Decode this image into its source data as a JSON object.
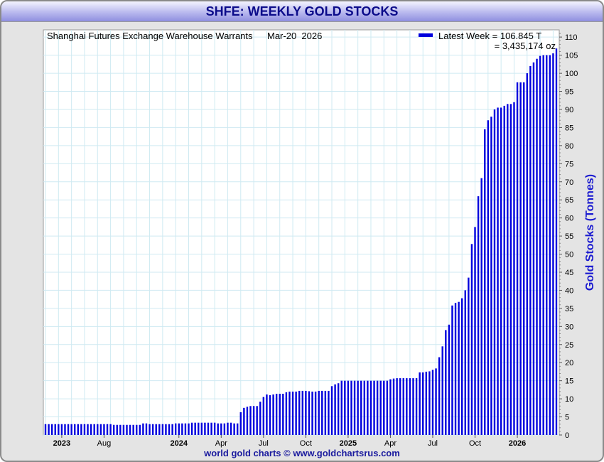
{
  "header": {
    "title": "SHFE: WEEKLY GOLD STOCKS"
  },
  "footer": {
    "credit": "world gold charts © www.goldchartsrus.com"
  },
  "colors": {
    "bar": "#0000dd",
    "title_text": "#0b0b8a",
    "ylabel": "#1a1ad0",
    "grid": "#cfeaf2"
  },
  "chart_data": {
    "type": "bar",
    "title": "Shanghai Futures Exchange Warehouse Warrants",
    "date_label": "Mar-20  2026",
    "legend": {
      "label": "Latest Week = 106.845 T",
      "sub_label": "= 3,435,174 oz",
      "position": "top-right"
    },
    "ylabel": "Gold Stocks (Tonnes)",
    "xlabel": "",
    "ylim": [
      0,
      112
    ],
    "y_ticks": [
      0,
      5,
      10,
      15,
      20,
      25,
      30,
      35,
      40,
      45,
      50,
      55,
      60,
      65,
      70,
      75,
      80,
      85,
      90,
      95,
      100,
      105,
      110
    ],
    "x_ticks": [
      {
        "label": "2023",
        "week": 5,
        "bold": true
      },
      {
        "label": "Aug",
        "week": 18,
        "bold": false
      },
      {
        "label": "2024",
        "week": 41,
        "bold": true
      },
      {
        "label": "Apr",
        "week": 54,
        "bold": false
      },
      {
        "label": "Jul",
        "week": 67,
        "bold": false
      },
      {
        "label": "Oct",
        "week": 80,
        "bold": false
      },
      {
        "label": "2025",
        "week": 93,
        "bold": true
      },
      {
        "label": "Apr",
        "week": 106,
        "bold": false
      },
      {
        "label": "Jul",
        "week": 119,
        "bold": false
      },
      {
        "label": "Oct",
        "week": 132,
        "bold": false
      },
      {
        "label": "2026",
        "week": 145,
        "bold": true
      }
    ],
    "grid": true,
    "series": [
      {
        "name": "Weekly Gold Stocks (Tonnes)",
        "values": [
          3,
          3,
          3,
          3,
          3,
          3,
          3,
          3,
          3,
          3,
          3,
          3,
          3,
          3,
          3,
          3,
          3,
          3,
          3,
          3,
          3,
          2.8,
          2.8,
          2.8,
          2.8,
          2.8,
          2.8,
          2.8,
          2.8,
          2.8,
          3.2,
          3.2,
          3,
          3,
          3,
          3,
          3,
          3,
          3,
          3,
          3.2,
          3.2,
          3.2,
          3.2,
          3.2,
          3.4,
          3.4,
          3.4,
          3.4,
          3.4,
          3.4,
          3.4,
          3.4,
          3.2,
          3.2,
          3.2,
          3.4,
          3.4,
          3.2,
          3.2,
          6.3,
          7.5,
          7.8,
          8,
          8,
          8,
          9.2,
          10.5,
          11.2,
          11,
          11.2,
          11.4,
          11.4,
          11.4,
          11.8,
          12,
          12,
          12,
          12.2,
          12.2,
          12.2,
          12.1,
          12,
          12,
          12.2,
          12.2,
          12.2,
          12.2,
          13.5,
          14,
          14.3,
          15,
          15,
          15,
          15,
          15,
          15,
          15,
          15,
          15,
          15,
          15,
          15,
          15,
          15,
          15,
          15.4,
          15.6,
          15.7,
          15.7,
          15.7,
          15.7,
          15.7,
          15.7,
          15.7,
          17.3,
          17.3,
          17.5,
          17.6,
          18,
          18.4,
          21.5,
          24.5,
          29,
          30.5,
          35.8,
          36.5,
          36.8,
          37.8,
          40,
          43.5,
          52.8,
          57.5,
          66,
          71,
          84.5,
          87,
          88,
          90,
          90.5,
          90.5,
          91,
          91.5,
          91.5,
          92,
          97.5,
          97.5,
          97.5,
          100,
          102,
          103,
          104,
          104.8,
          105,
          105,
          105,
          105.5,
          106.845
        ]
      }
    ]
  }
}
